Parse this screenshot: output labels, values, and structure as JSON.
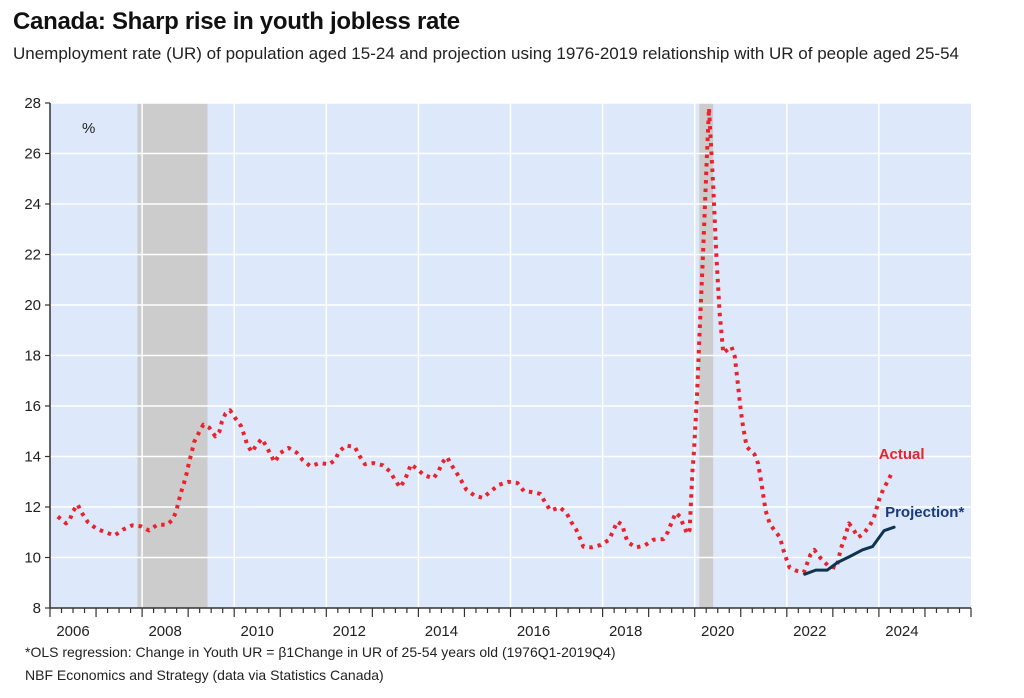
{
  "title": "Canada: Sharp rise in youth jobless rate",
  "subtitle": "Unemployment rate (UR) of population aged 15-24 and projection using 1976-2019 relationship with UR of people aged 25-54",
  "footnotes": [
    "*OLS regression: Change in Youth UR = β1Change in UR of 25-54 years old (1976Q1-2019Q4)",
    "NBF Economics and Strategy (data via Statistics Canada)"
  ],
  "colors": {
    "plot_background": "#dde8fa",
    "gridline": "#ffffff",
    "recession_band": "#cccccc",
    "actual": "#e8232d",
    "projection": "#0d3550",
    "projection_label": "#1a3a7a",
    "axis": "#333333"
  },
  "chart_data": {
    "type": "line",
    "title": "Canada: Sharp rise in youth jobless rate",
    "xlabel": "",
    "ylabel": "%",
    "xlim": [
      2006,
      2026
    ],
    "ylim": [
      8,
      28
    ],
    "x_tick_labels": [
      "2006",
      "2008",
      "2010",
      "2012",
      "2014",
      "2016",
      "2018",
      "2020",
      "2022",
      "2024"
    ],
    "y_ticks": [
      8,
      10,
      12,
      14,
      16,
      18,
      20,
      22,
      24,
      26,
      28
    ],
    "grid": true,
    "shaded_periods": [
      {
        "label": "recession",
        "start": 2007.9,
        "end": 2009.42
      },
      {
        "label": "recession",
        "start": 2020.1,
        "end": 2020.4
      }
    ],
    "series": [
      {
        "name": "Actual",
        "style": "dotted",
        "points": [
          [
            2006.17,
            11.62
          ],
          [
            2006.35,
            11.35
          ],
          [
            2006.43,
            11.5
          ],
          [
            2006.5,
            11.83
          ],
          [
            2006.6,
            12.1
          ],
          [
            2006.7,
            11.75
          ],
          [
            2006.82,
            11.4
          ],
          [
            2007.0,
            11.15
          ],
          [
            2007.2,
            11.0
          ],
          [
            2007.4,
            10.87
          ],
          [
            2007.58,
            11.1
          ],
          [
            2007.78,
            11.27
          ],
          [
            2007.97,
            11.24
          ],
          [
            2008.15,
            11.07
          ],
          [
            2008.33,
            11.3
          ],
          [
            2008.54,
            11.3
          ],
          [
            2008.66,
            11.49
          ],
          [
            2008.74,
            11.83
          ],
          [
            2008.84,
            12.55
          ],
          [
            2008.91,
            12.95
          ],
          [
            2008.97,
            13.35
          ],
          [
            2009.02,
            13.78
          ],
          [
            2009.08,
            14.18
          ],
          [
            2009.13,
            14.57
          ],
          [
            2009.22,
            14.9
          ],
          [
            2009.33,
            15.26
          ],
          [
            2009.46,
            15.14
          ],
          [
            2009.59,
            14.8
          ],
          [
            2009.68,
            15.0
          ],
          [
            2009.73,
            15.37
          ],
          [
            2009.81,
            15.7
          ],
          [
            2009.91,
            15.83
          ],
          [
            2010.03,
            15.5
          ],
          [
            2010.15,
            15.2
          ],
          [
            2010.22,
            14.84
          ],
          [
            2010.28,
            14.48
          ],
          [
            2010.38,
            14.18
          ],
          [
            2010.49,
            14.47
          ],
          [
            2010.6,
            14.7
          ],
          [
            2010.71,
            14.37
          ],
          [
            2010.8,
            14.04
          ],
          [
            2010.88,
            13.78
          ],
          [
            2011.0,
            14.14
          ],
          [
            2011.18,
            14.34
          ],
          [
            2011.36,
            14.15
          ],
          [
            2011.49,
            13.85
          ],
          [
            2011.65,
            13.62
          ],
          [
            2011.86,
            13.74
          ],
          [
            2012.07,
            13.69
          ],
          [
            2012.19,
            13.87
          ],
          [
            2012.28,
            14.2
          ],
          [
            2012.43,
            14.44
          ],
          [
            2012.62,
            14.37
          ],
          [
            2012.73,
            14.0
          ],
          [
            2012.84,
            13.69
          ],
          [
            2013.02,
            13.74
          ],
          [
            2013.23,
            13.65
          ],
          [
            2013.38,
            13.41
          ],
          [
            2013.49,
            13.08
          ],
          [
            2013.6,
            12.78
          ],
          [
            2013.71,
            13.08
          ],
          [
            2013.84,
            13.69
          ],
          [
            2013.98,
            13.49
          ],
          [
            2014.13,
            13.25
          ],
          [
            2014.33,
            13.14
          ],
          [
            2014.44,
            13.42
          ],
          [
            2014.51,
            13.74
          ],
          [
            2014.62,
            13.98
          ],
          [
            2014.72,
            13.65
          ],
          [
            2014.84,
            13.32
          ],
          [
            2014.93,
            13.05
          ],
          [
            2015.04,
            12.69
          ],
          [
            2015.22,
            12.45
          ],
          [
            2015.4,
            12.36
          ],
          [
            2015.57,
            12.62
          ],
          [
            2015.75,
            12.88
          ],
          [
            2015.96,
            13.0
          ],
          [
            2016.15,
            12.95
          ],
          [
            2016.29,
            12.63
          ],
          [
            2016.47,
            12.59
          ],
          [
            2016.65,
            12.52
          ],
          [
            2016.76,
            12.15
          ],
          [
            2016.87,
            11.86
          ],
          [
            2017.07,
            11.99
          ],
          [
            2017.22,
            11.75
          ],
          [
            2017.32,
            11.4
          ],
          [
            2017.43,
            11.09
          ],
          [
            2017.51,
            10.76
          ],
          [
            2017.58,
            10.43
          ],
          [
            2017.76,
            10.4
          ],
          [
            2017.96,
            10.5
          ],
          [
            2018.14,
            10.7
          ],
          [
            2018.23,
            11.06
          ],
          [
            2018.32,
            11.42
          ],
          [
            2018.43,
            11.29
          ],
          [
            2018.48,
            10.93
          ],
          [
            2018.55,
            10.6
          ],
          [
            2018.72,
            10.4
          ],
          [
            2018.91,
            10.47
          ],
          [
            2019.1,
            10.7
          ],
          [
            2019.32,
            10.73
          ],
          [
            2019.42,
            11.02
          ],
          [
            2019.5,
            11.4
          ],
          [
            2019.59,
            11.77
          ],
          [
            2019.68,
            11.62
          ],
          [
            2019.76,
            11.26
          ],
          [
            2019.84,
            10.93
          ],
          [
            2019.89,
            11.09
          ],
          [
            2019.91,
            11.86
          ],
          [
            2019.93,
            12.65
          ],
          [
            2019.95,
            13.38
          ],
          [
            2019.98,
            14.1
          ],
          [
            2020.05,
            16.4
          ],
          [
            2020.11,
            19.1
          ],
          [
            2020.18,
            22.0
          ],
          [
            2020.26,
            25.7
          ],
          [
            2020.31,
            27.8
          ],
          [
            2020.4,
            24.8
          ],
          [
            2020.47,
            22.0
          ],
          [
            2020.54,
            19.7
          ],
          [
            2020.62,
            18.1
          ],
          [
            2020.8,
            18.35
          ],
          [
            2020.87,
            17.95
          ],
          [
            2020.94,
            16.83
          ],
          [
            2020.99,
            15.97
          ],
          [
            2021.05,
            15.17
          ],
          [
            2021.13,
            14.38
          ],
          [
            2021.3,
            14.08
          ],
          [
            2021.38,
            13.71
          ],
          [
            2021.45,
            12.92
          ],
          [
            2021.54,
            11.86
          ],
          [
            2021.63,
            11.33
          ],
          [
            2021.74,
            11.06
          ],
          [
            2021.85,
            10.8
          ],
          [
            2021.95,
            10.14
          ],
          [
            2022.06,
            9.6
          ],
          [
            2022.22,
            9.47
          ],
          [
            2022.37,
            9.41
          ],
          [
            2022.51,
            10.1
          ],
          [
            2022.6,
            10.3
          ],
          [
            2022.75,
            9.94
          ],
          [
            2022.9,
            9.67
          ],
          [
            2023.08,
            9.58
          ],
          [
            2023.17,
            10.33
          ],
          [
            2023.26,
            10.8
          ],
          [
            2023.35,
            11.35
          ],
          [
            2023.44,
            11.13
          ],
          [
            2023.55,
            10.8
          ],
          [
            2023.66,
            10.93
          ],
          [
            2023.8,
            11.26
          ],
          [
            2023.89,
            11.57
          ],
          [
            2024.0,
            12.26
          ],
          [
            2024.09,
            12.68
          ],
          [
            2024.2,
            13.05
          ],
          [
            2024.3,
            13.42
          ]
        ]
      },
      {
        "name": "Projection*",
        "style": "solid",
        "points": [
          [
            2022.39,
            9.34
          ],
          [
            2022.63,
            9.5
          ],
          [
            2022.88,
            9.5
          ],
          [
            2023.1,
            9.8
          ],
          [
            2023.39,
            10.06
          ],
          [
            2023.64,
            10.3
          ],
          [
            2023.86,
            10.43
          ],
          [
            2024.11,
            11.06
          ],
          [
            2024.33,
            11.2
          ]
        ]
      }
    ],
    "annotations": [
      {
        "text": "Actual",
        "series": "Actual"
      },
      {
        "text": "Projection*",
        "series": "Projection*"
      },
      {
        "text": "%",
        "role": "unit-label"
      }
    ]
  }
}
